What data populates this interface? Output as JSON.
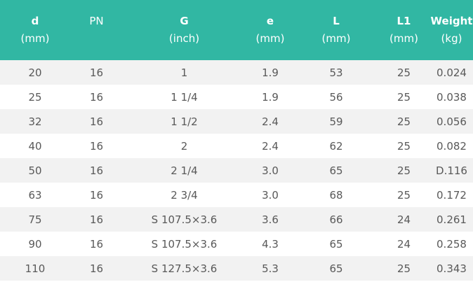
{
  "table": {
    "headers": [
      {
        "name": "d",
        "unit": "(mm)",
        "bold": true
      },
      {
        "name": "PN",
        "unit": "",
        "bold": false
      },
      {
        "name": "G",
        "unit": "(inch)",
        "bold": true
      },
      {
        "name": "e",
        "unit": "(mm)",
        "bold": true
      },
      {
        "name": "L",
        "unit": "(mm)",
        "bold": true
      },
      {
        "name": "L1",
        "unit": "(mm)",
        "bold": true
      },
      {
        "name": "Weight",
        "unit": "(kg)",
        "bold": true
      }
    ],
    "rows": [
      [
        "20",
        "16",
        "1",
        "1.9",
        "53",
        "25",
        "0.024"
      ],
      [
        "25",
        "16",
        "1 1/4",
        "1.9",
        "56",
        "25",
        "0.038"
      ],
      [
        "32",
        "16",
        "1 1/2",
        "2.4",
        "59",
        "25",
        "0.056"
      ],
      [
        "40",
        "16",
        "2",
        "2.4",
        "62",
        "25",
        "0.082"
      ],
      [
        "50",
        "16",
        "2 1/4",
        "3.0",
        "65",
        "25",
        "D.116"
      ],
      [
        "63",
        "16",
        "2 3/4",
        "3.0",
        "68",
        "25",
        "0.172"
      ],
      [
        "75",
        "16",
        "S 107.5×3.6",
        "3.6",
        "66",
        "24",
        "0.261"
      ],
      [
        "90",
        "16",
        "S 107.5×3.6",
        "4.3",
        "65",
        "24",
        "0.258"
      ],
      [
        "110",
        "16",
        "S 127.5×3.6",
        "5.3",
        "65",
        "25",
        "0.343"
      ]
    ]
  },
  "colors": {
    "header_bg": "#31b7a3",
    "header_text": "#ffffff",
    "row_alt_bg": "#f2f2f2",
    "cell_text": "#595959"
  }
}
